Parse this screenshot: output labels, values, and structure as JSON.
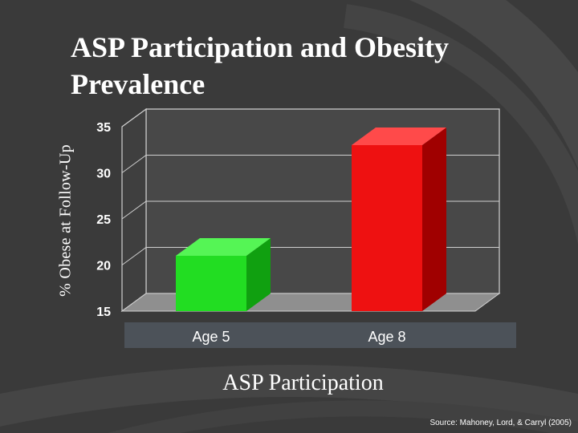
{
  "slide": {
    "title": "ASP Participation and Obesity Prevalence",
    "source": "Source: Mahoney, Lord, & Carryl (2005)"
  },
  "chart_data": {
    "type": "bar",
    "title": "ASP Participation and Obesity Prevalence",
    "xlabel": "ASP Participation",
    "ylabel": "% Obese at Follow-Up",
    "categories": [
      "Age 5",
      "Age 8"
    ],
    "values": [
      21,
      33
    ],
    "ylim": [
      15,
      35
    ],
    "yticks": [
      15,
      20,
      25,
      30,
      35
    ],
    "grid": true,
    "colors": [
      "#22dd22",
      "#ee1111"
    ]
  }
}
